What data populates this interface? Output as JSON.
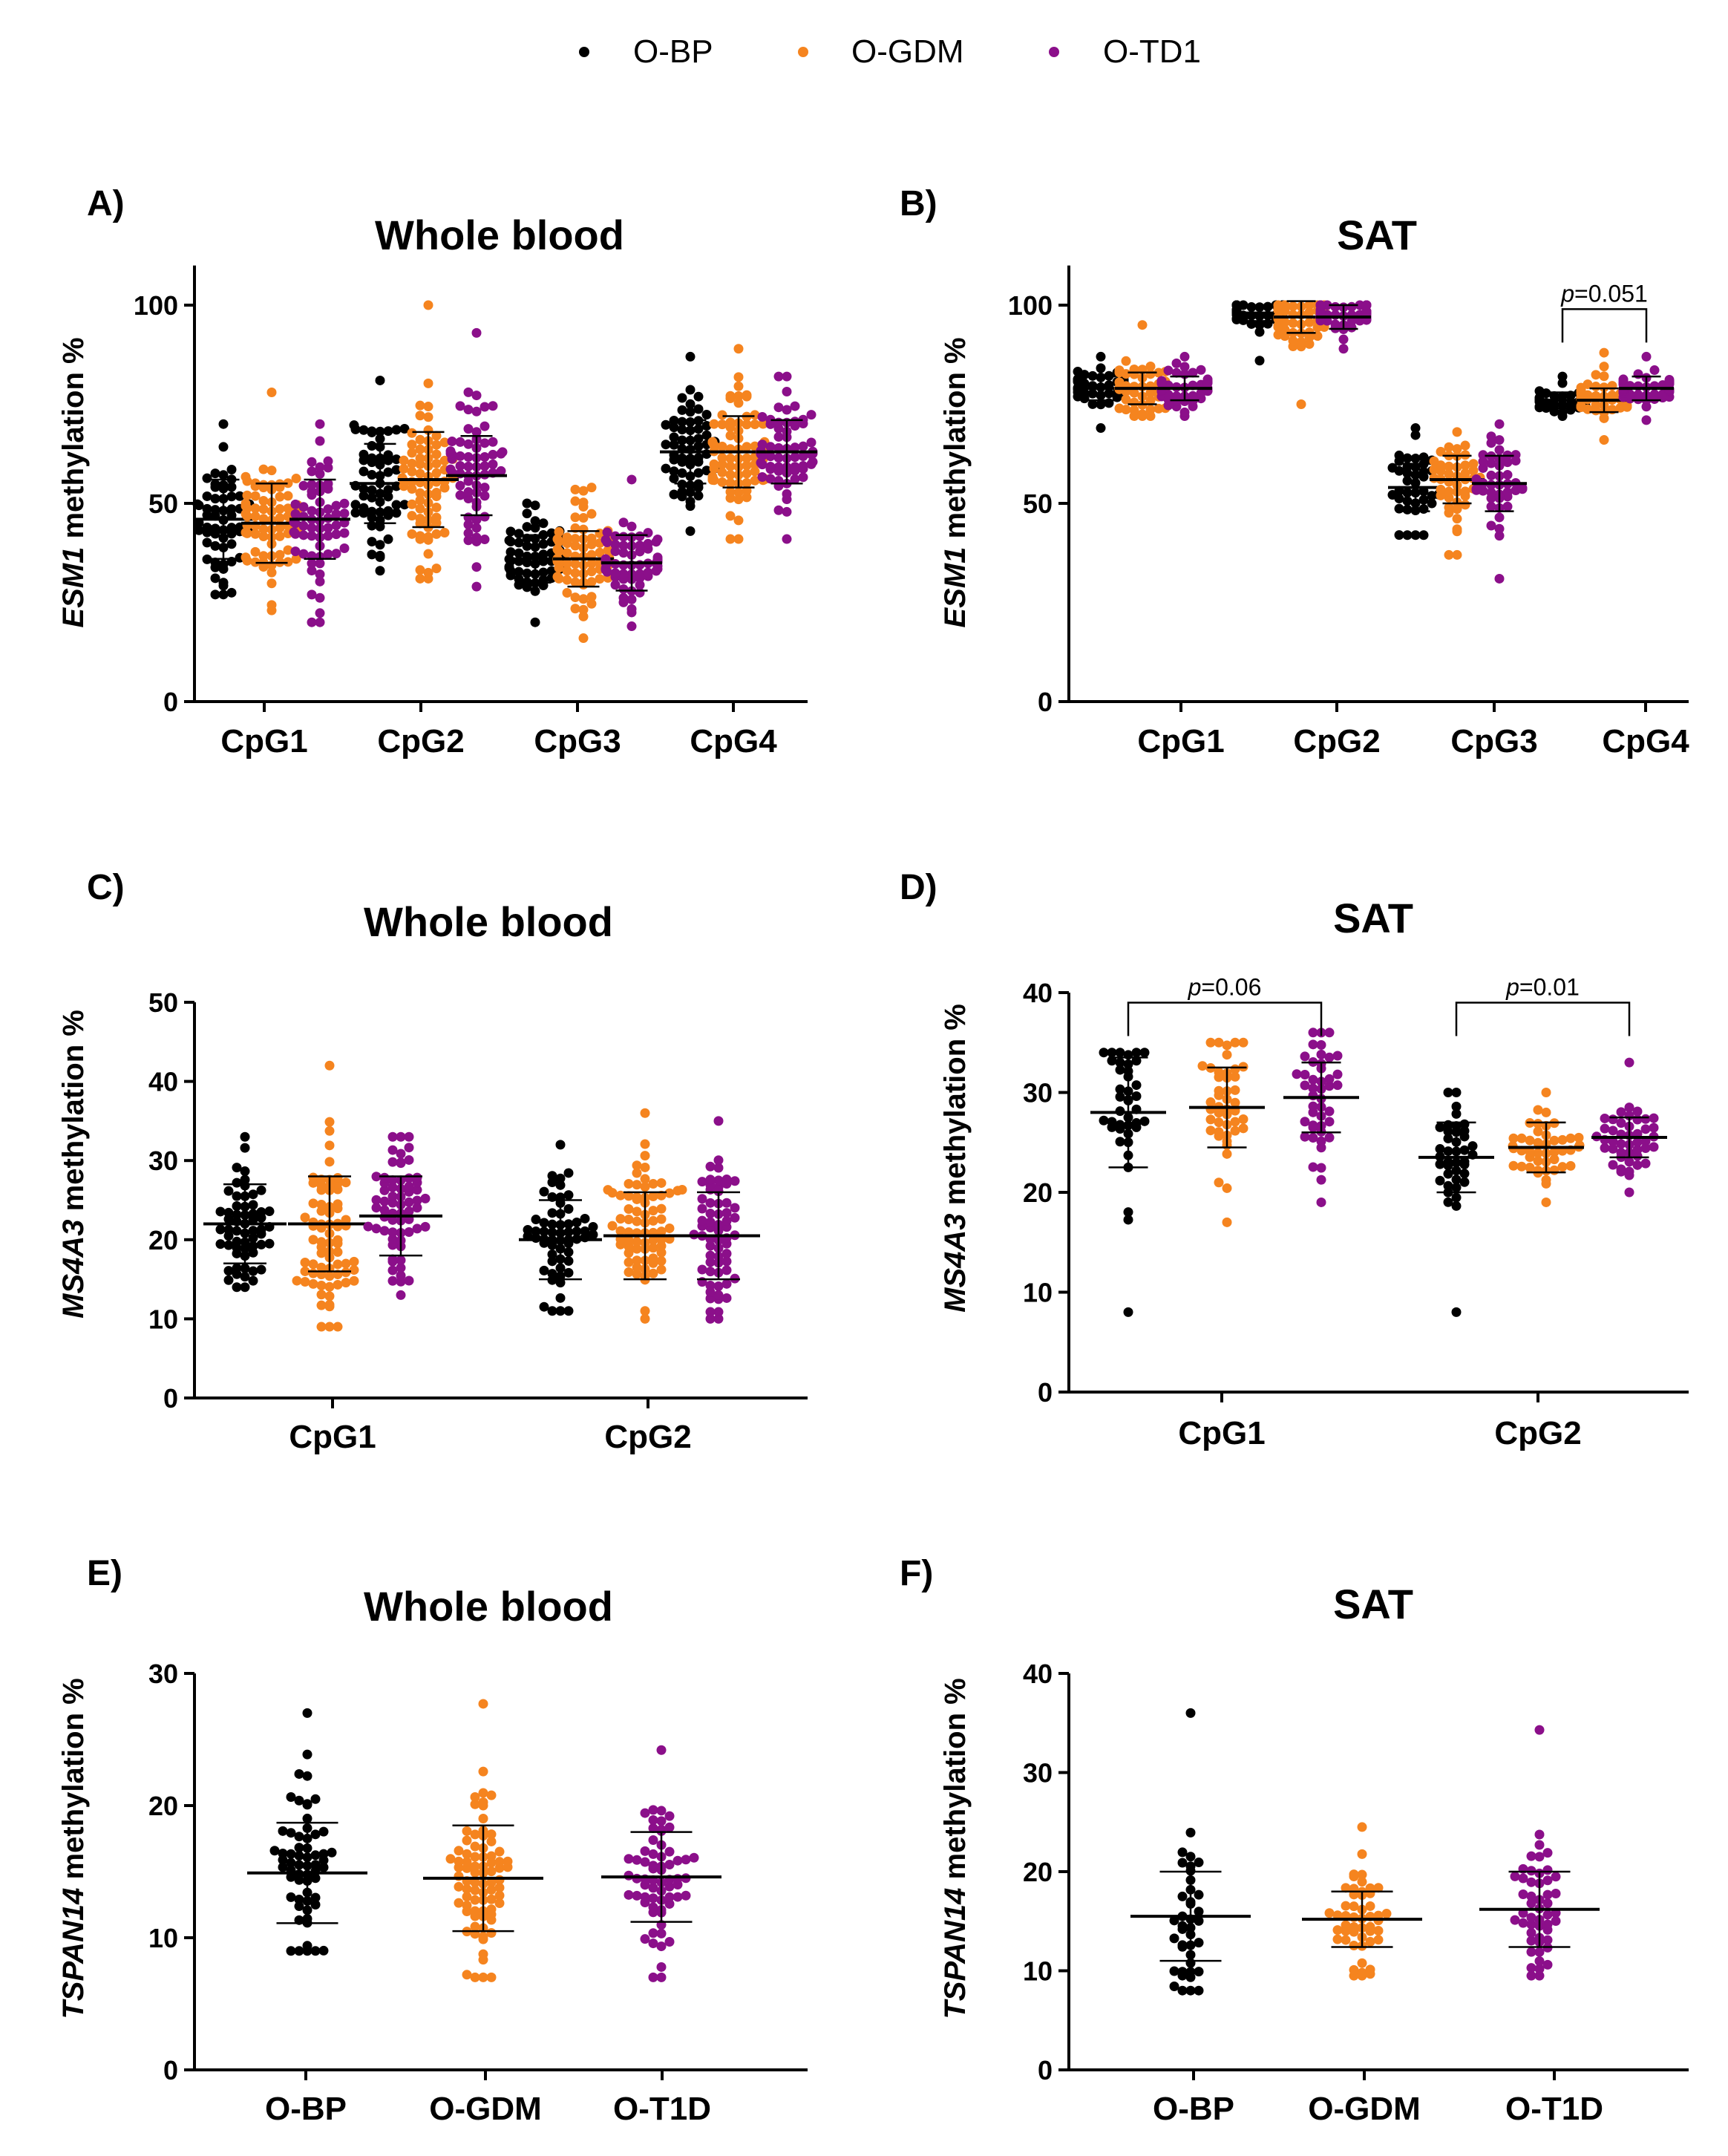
{
  "legend": [
    {
      "label": "O-BP",
      "color": "#000000"
    },
    {
      "label": "O-GDM",
      "color": "#f5841f"
    },
    {
      "label": "O-TD1",
      "color": "#8b0f8a"
    }
  ],
  "chart_data": [
    {
      "panel": "A)",
      "type": "scatter",
      "title": "Whole blood",
      "ylabel_gene": "ESM1",
      "ylabel_rest": " methylation %",
      "ylim": [
        0,
        110
      ],
      "yticks": [
        0,
        50,
        100
      ],
      "categories": [
        "CpG1",
        "CpG2",
        "CpG3",
        "CpG4"
      ],
      "series": [
        {
          "name": "O-BP",
          "n": 60,
          "mean": [
            46,
            55,
            36,
            63
          ],
          "sd": [
            10,
            10,
            6,
            8
          ],
          "min": [
            27,
            33,
            20,
            43
          ],
          "max": [
            70,
            81,
            50,
            87
          ]
        },
        {
          "name": "O-GDM",
          "n": 75,
          "mean": [
            45,
            56,
            36,
            63
          ],
          "sd": [
            10,
            12,
            7,
            9
          ],
          "min": [
            23,
            31,
            16,
            41
          ],
          "max": [
            78,
            100,
            54,
            89
          ]
        },
        {
          "name": "O-TD1",
          "n": 65,
          "mean": [
            46,
            57,
            35,
            63
          ],
          "sd": [
            10,
            10,
            7,
            8
          ],
          "min": [
            20,
            29,
            19,
            41
          ],
          "max": [
            70,
            93,
            56,
            82
          ]
        }
      ],
      "annotations": []
    },
    {
      "panel": "B)",
      "type": "scatter",
      "title": "SAT",
      "ylabel_gene": "ESM1",
      "ylabel_rest": " methylation %",
      "ylim": [
        0,
        110
      ],
      "yticks": [
        0,
        50,
        100
      ],
      "categories": [
        "CpG1",
        "CpG2",
        "CpG3",
        "CpG4"
      ],
      "series": [
        {
          "name": "O-BP",
          "n": 40,
          "mean": [
            79,
            98,
            54,
            76
          ],
          "sd": [
            3,
            2,
            6,
            2
          ],
          "min": [
            69,
            86,
            42,
            72
          ],
          "max": [
            87,
            100,
            69,
            82
          ]
        },
        {
          "name": "O-GDM",
          "n": 45,
          "mean": [
            79,
            97,
            56,
            76
          ],
          "sd": [
            4,
            4,
            6,
            3
          ],
          "min": [
            72,
            75,
            37,
            66
          ],
          "max": [
            95,
            100,
            68,
            88
          ]
        },
        {
          "name": "O-TD1",
          "n": 45,
          "mean": [
            79,
            97,
            55,
            79
          ],
          "sd": [
            3,
            3,
            7,
            3
          ],
          "min": [
            72,
            89,
            31,
            71
          ],
          "max": [
            87,
            100,
            70,
            87
          ]
        }
      ],
      "annotations": [
        {
          "p_prefix": "p",
          "p_value": "=0.051",
          "category_index": 3,
          "from_series": 0,
          "to_series": 2,
          "y": 99
        }
      ]
    },
    {
      "panel": "C)",
      "type": "scatter",
      "title": "Whole blood",
      "ylabel_gene": "MS4A3",
      "ylabel_rest": " methylation %",
      "ylim": [
        0,
        50
      ],
      "yticks": [
        0,
        10,
        20,
        30,
        40,
        50
      ],
      "categories": [
        "CpG1",
        "CpG2"
      ],
      "series": [
        {
          "name": "O-BP",
          "n": 60,
          "mean": [
            22,
            20
          ],
          "sd": [
            5,
            5
          ],
          "min": [
            14,
            11
          ],
          "max": [
            33,
            32
          ]
        },
        {
          "name": "O-GDM",
          "n": 75,
          "mean": [
            22,
            20.5
          ],
          "sd": [
            6,
            5.5
          ],
          "min": [
            9,
            10
          ],
          "max": [
            42,
            36
          ]
        },
        {
          "name": "O-TD1",
          "n": 65,
          "mean": [
            23,
            20.5
          ],
          "sd": [
            5,
            5.5
          ],
          "min": [
            13,
            10
          ],
          "max": [
            33,
            35
          ]
        }
      ],
      "annotations": []
    },
    {
      "panel": "D)",
      "type": "scatter",
      "title": "SAT",
      "ylabel_gene": "MS4A3",
      "ylabel_rest": " methylation %",
      "ylim": [
        0,
        40
      ],
      "yticks": [
        0,
        10,
        20,
        30,
        40
      ],
      "categories": [
        "CpG1",
        "CpG2"
      ],
      "series": [
        {
          "name": "O-BP",
          "n": 40,
          "mean": [
            28,
            23.5
          ],
          "sd": [
            5.5,
            3.5
          ],
          "min": [
            8,
            8
          ],
          "max": [
            34,
            30
          ]
        },
        {
          "name": "O-GDM",
          "n": 45,
          "mean": [
            28.5,
            24.5
          ],
          "sd": [
            4,
            2.5
          ],
          "min": [
            17,
            19
          ],
          "max": [
            35,
            30
          ]
        },
        {
          "name": "O-TD1",
          "n": 45,
          "mean": [
            29.5,
            25.5
          ],
          "sd": [
            3.5,
            2
          ],
          "min": [
            19,
            20
          ],
          "max": [
            36,
            33
          ]
        }
      ],
      "annotations": [
        {
          "p_prefix": "p",
          "p_value": "=0.06",
          "category_index": 0,
          "from_series": 0,
          "to_series": 2,
          "y": 39
        },
        {
          "p_prefix": "p",
          "p_value": "=0.01",
          "category_index": 1,
          "from_series": 0,
          "to_series": 2,
          "y": 39
        }
      ]
    },
    {
      "panel": "E)",
      "type": "scatter",
      "title": "Whole blood",
      "ylabel_gene": "TSPAN14",
      "ylabel_rest": " methylation %",
      "ylim": [
        0,
        30
      ],
      "yticks": [
        0,
        10,
        20,
        30
      ],
      "categories": [
        "O-BP",
        "O-GDM",
        "O-T1D"
      ],
      "series": [
        {
          "name": "",
          "n": 60,
          "mean": [
            14.9,
            14.5,
            14.6
          ],
          "sd": [
            3.8,
            4,
            3.4
          ],
          "min": [
            9,
            7,
            7
          ],
          "max": [
            27,
            27.7,
            24.2
          ]
        }
      ],
      "colors_by_category": [
        "#000000",
        "#f5841f",
        "#8b0f8a"
      ],
      "n_by_category": [
        60,
        80,
        65
      ],
      "annotations": []
    },
    {
      "panel": "F)",
      "type": "scatter",
      "title": "SAT",
      "ylabel_gene": "TSPAN14",
      "ylabel_rest": " methylation %",
      "ylim": [
        0,
        40
      ],
      "yticks": [
        0,
        10,
        20,
        30,
        40
      ],
      "categories": [
        "O-BP",
        "O-GDM",
        "O-T1D"
      ],
      "series": [
        {
          "name": "",
          "n": 40,
          "mean": [
            15.5,
            15.2,
            16.2
          ],
          "sd": [
            4.5,
            2.8,
            3.8
          ],
          "min": [
            8,
            9.5,
            9.5
          ],
          "max": [
            36,
            24.5,
            34.3
          ]
        }
      ],
      "colors_by_category": [
        "#000000",
        "#f5841f",
        "#8b0f8a"
      ],
      "n_by_category": [
        40,
        50,
        50
      ],
      "annotations": []
    }
  ]
}
